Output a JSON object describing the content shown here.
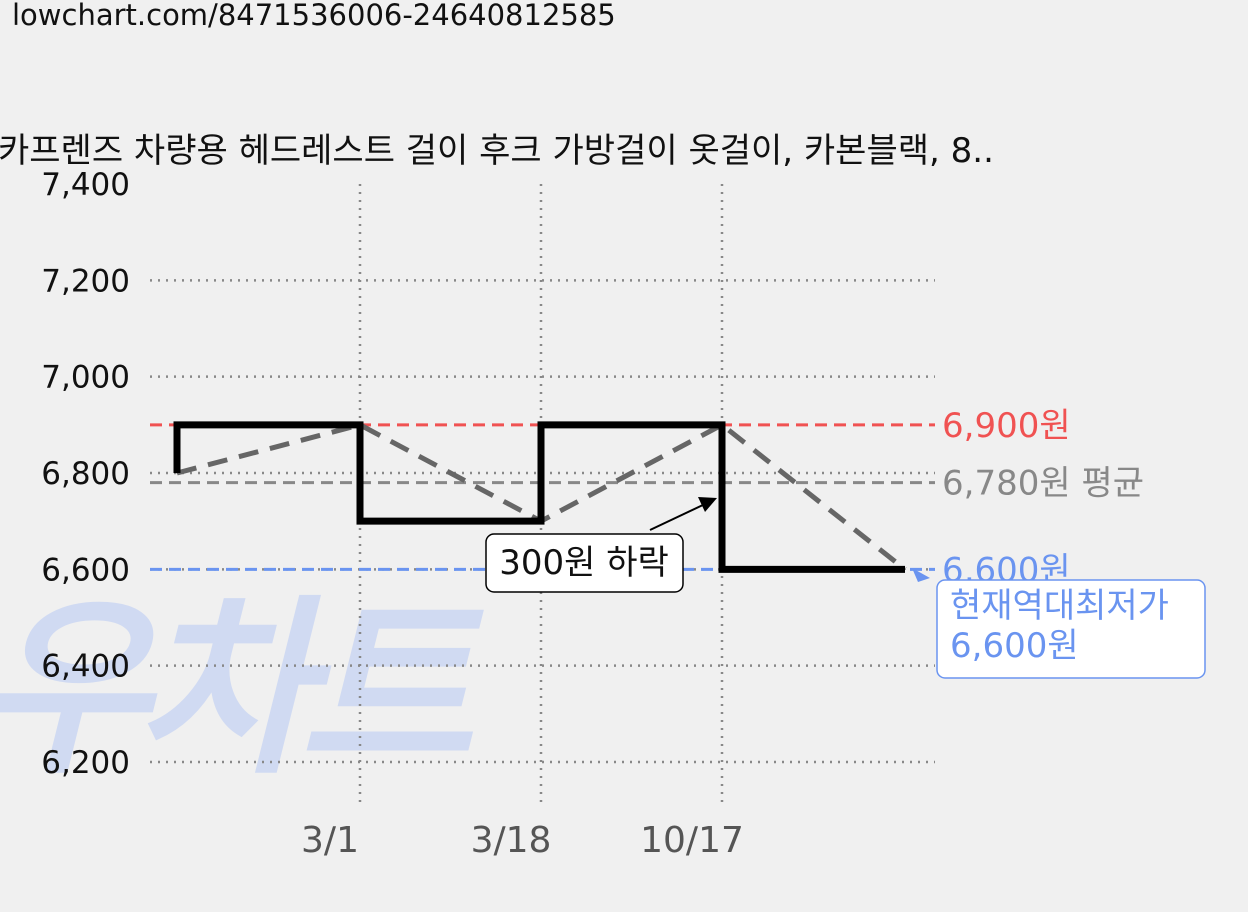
{
  "url": "lowchart.com/8471536006-24640812585",
  "watermark": "로우차트",
  "chart_data": {
    "type": "line",
    "title": "카프렌즈 차량용 헤드레스트 걸이 후크 가방걸이 옷걸이, 카본블랙, 8..",
    "xlabel": "",
    "ylabel": "",
    "ylim": [
      6200,
      7400
    ],
    "yticks": [
      "7,400",
      "7,200",
      "7,000",
      "6,800",
      "6,600",
      "6,400",
      "6,200"
    ],
    "xticks": [
      "3/1",
      "3/18",
      "10/17"
    ],
    "grid": true,
    "series": [
      {
        "style": "step",
        "color": "#000000",
        "points": [
          {
            "x": "start",
            "y": 6800
          },
          {
            "x": "start",
            "y": 6900
          },
          {
            "x": "3/1",
            "y": 6900
          },
          {
            "x": "3/1",
            "y": 6700
          },
          {
            "x": "3/18",
            "y": 6700
          },
          {
            "x": "3/18",
            "y": 6900
          },
          {
            "x": "10/17",
            "y": 6900
          },
          {
            "x": "10/17",
            "y": 6600
          },
          {
            "x": "end",
            "y": 6600
          }
        ]
      },
      {
        "style": "dashed",
        "color": "#666666",
        "points": [
          {
            "x": "start",
            "y": 6800
          },
          {
            "x": "3/1",
            "y": 6900
          },
          {
            "x": "3/18",
            "y": 6700
          },
          {
            "x": "10/17",
            "y": 6900
          },
          {
            "x": "end",
            "y": 6600
          }
        ]
      }
    ],
    "reference_lines": [
      {
        "value": 6900,
        "label": "6,900원",
        "color": "#f05252"
      },
      {
        "value": 6780,
        "label": "6,780원 평균",
        "color": "#888888"
      },
      {
        "value": 6600,
        "label": "6,600원",
        "color": "#6a94f0"
      }
    ],
    "annotations": [
      {
        "text": "300원 하락",
        "points_to": "10/17"
      },
      {
        "text": "현재역대최저가\n6,600원",
        "lines": [
          "현재역대최저가",
          "6,600원"
        ],
        "color": "#6a94f0",
        "points_to": "end"
      }
    ]
  }
}
